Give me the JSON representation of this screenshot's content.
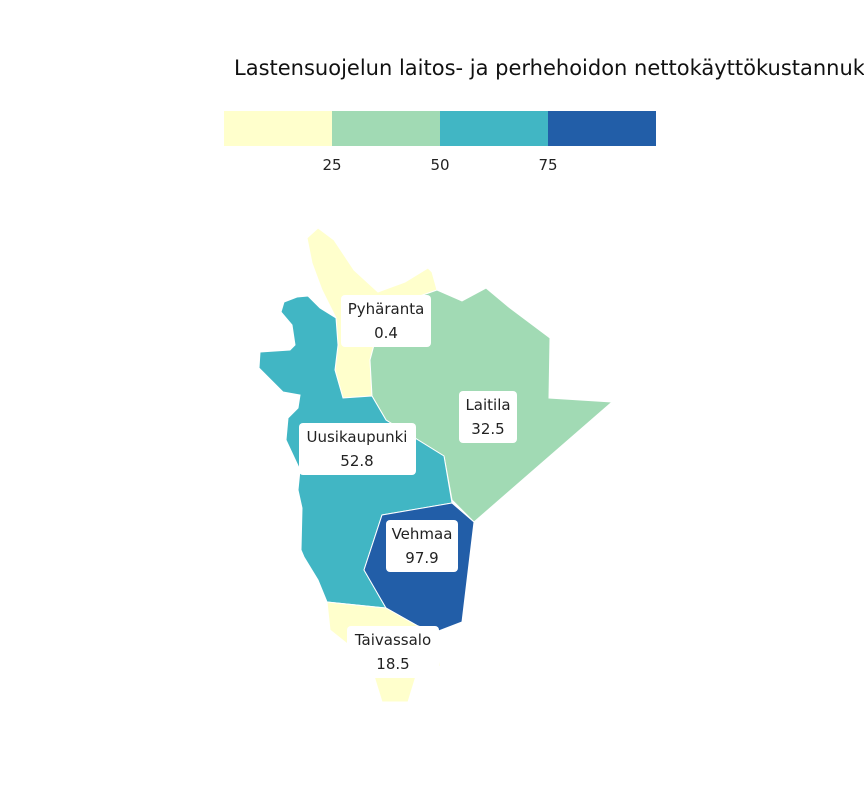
{
  "title": "Lastensuojelun laitos- ja perhehoidon nettokäyttökustannuk",
  "legend": {
    "bins": [
      {
        "color": "#ffffcc"
      },
      {
        "color": "#a1dab4"
      },
      {
        "color": "#41b6c4"
      },
      {
        "color": "#225ea8"
      }
    ],
    "ticks": [
      "25",
      "50",
      "75"
    ]
  },
  "regions": [
    {
      "name": "Pyhäranta",
      "value": "0.4",
      "color": "#ffffcc"
    },
    {
      "name": "Laitila",
      "value": "32.5",
      "color": "#a1dab4"
    },
    {
      "name": "Uusikaupunki",
      "value": "52.8",
      "color": "#41b6c4"
    },
    {
      "name": "Vehmaa",
      "value": "97.9",
      "color": "#225ea8"
    },
    {
      "name": "Taivassalo",
      "value": "18.5",
      "color": "#ffffcc"
    }
  ]
}
